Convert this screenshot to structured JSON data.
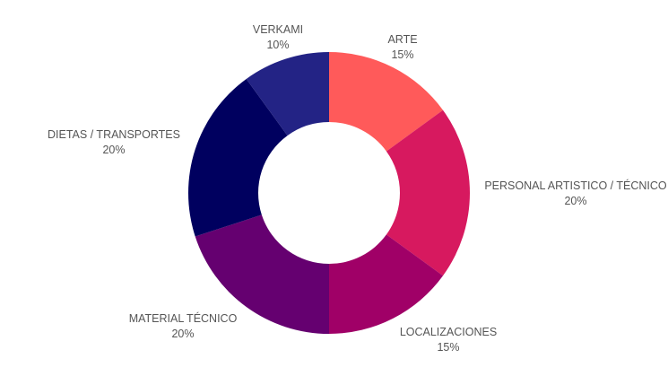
{
  "chart_data": {
    "type": "pie",
    "donut": true,
    "title": "",
    "legend": "none",
    "slices": [
      {
        "label": "ARTE",
        "value": 15,
        "value_label": "15%",
        "color": "#ff5a5a"
      },
      {
        "label": "PERSONAL ARTISTICO / TÉCNICO",
        "value": 20,
        "value_label": "20%",
        "color": "#d7195f"
      },
      {
        "label": "LOCALIZACIONES",
        "value": 15,
        "value_label": "15%",
        "color": "#a00067"
      },
      {
        "label": "MATERIAL TÉCNICO",
        "value": 20,
        "value_label": "20%",
        "color": "#650070"
      },
      {
        "label": "DIETAS / TRANSPORTES",
        "value": 20,
        "value_label": "20%",
        "color": "#00005f"
      },
      {
        "label": "VERKAMI",
        "value": 10,
        "value_label": "10%",
        "color": "#232385"
      }
    ]
  }
}
